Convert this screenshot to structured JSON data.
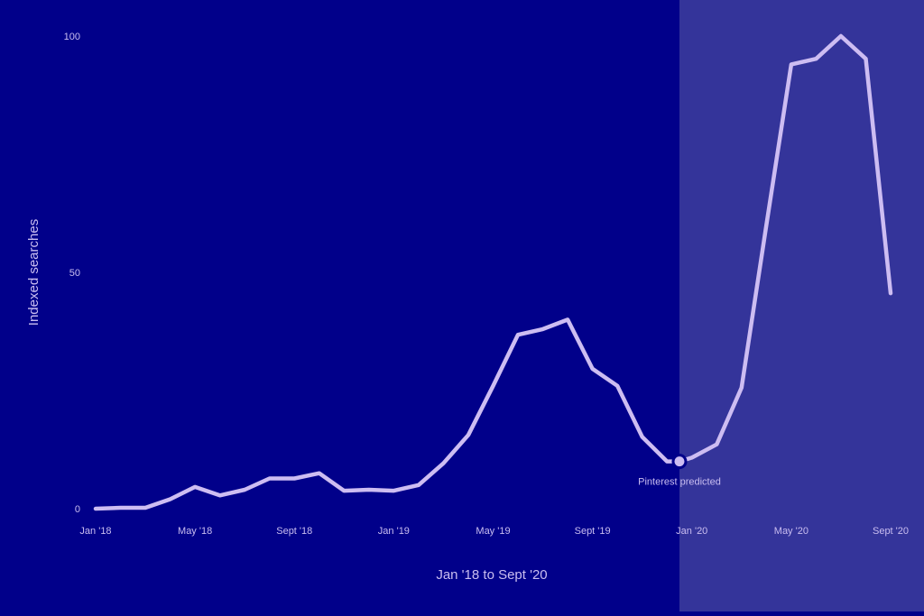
{
  "colors": {
    "background": "#01008a",
    "predicted_region": "#34349a",
    "line": "#cdbdf2",
    "text": "#c9bdf0"
  },
  "chart_data": {
    "type": "line",
    "xlabel": "Jan '18 to Sept '20",
    "ylabel": "Indexed searches",
    "ylim": [
      0,
      100
    ],
    "yticks": [
      0,
      50,
      100
    ],
    "x_tick_labels": [
      "Jan '18",
      "May '18",
      "Sept '18",
      "Jan '19",
      "May '19",
      "Sept '19",
      "Jan '20",
      "May '20",
      "Sept '20"
    ],
    "x_tick_months": [
      0,
      4,
      8,
      12,
      16,
      20,
      24,
      28,
      32
    ],
    "grid": false,
    "legend": "none",
    "shaded_region": {
      "from_month": 23.5,
      "to_month": 33.5
    },
    "annotation": {
      "text": "Pinterest predicted",
      "month": 23.5,
      "value": 10
    },
    "series": [
      {
        "months": [
          0,
          1,
          2,
          3,
          4,
          5,
          6,
          7,
          8,
          9,
          10,
          11,
          12,
          13,
          14,
          15,
          16,
          17,
          18,
          19,
          20,
          21,
          22,
          23,
          23.5,
          24,
          25,
          26,
          27,
          28,
          29,
          30,
          31,
          32
        ],
        "values": [
          0,
          0.2,
          0.2,
          2,
          4.6,
          2.8,
          4,
          6.4,
          6.4,
          7.5,
          3.8,
          4,
          3.8,
          5,
          9.6,
          15.6,
          26,
          36.8,
          38,
          40,
          29.6,
          26,
          15.2,
          10,
          10,
          10.8,
          13.6,
          25.6,
          60,
          94,
          95.2,
          100,
          95.2,
          45.6
        ]
      }
    ]
  }
}
